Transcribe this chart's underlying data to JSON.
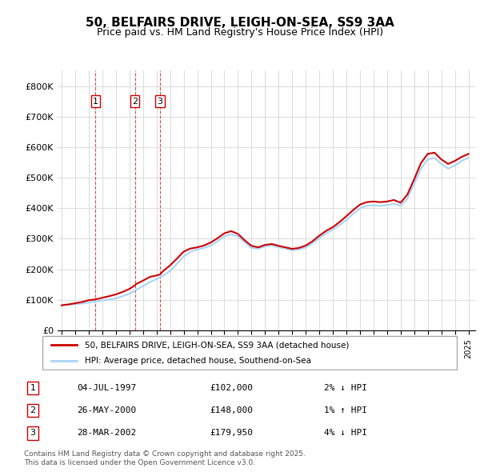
{
  "title": "50, BELFAIRS DRIVE, LEIGH-ON-SEA, SS9 3AA",
  "subtitle": "Price paid vs. HM Land Registry's House Price Index (HPI)",
  "ylabel": "",
  "xlabel": "",
  "ylim": [
    0,
    850000
  ],
  "yticks": [
    0,
    100000,
    200000,
    300000,
    400000,
    500000,
    600000,
    700000,
    800000
  ],
  "ytick_labels": [
    "£0",
    "£100K",
    "£200K",
    "£300K",
    "£400K",
    "£500K",
    "£600K",
    "£700K",
    "£800K"
  ],
  "hpi_color": "#aad4f5",
  "price_color": "#cc0000",
  "vline_color": "#cc0000",
  "grid_color": "#dddddd",
  "background_color": "#ffffff",
  "transactions": [
    {
      "id": 1,
      "date": "04-JUL-1997",
      "price": 102000,
      "pct": "2%",
      "dir": "↓",
      "year": 1997.5
    },
    {
      "id": 2,
      "date": "26-MAY-2000",
      "price": 148000,
      "pct": "1%",
      "dir": "↑",
      "year": 2000.4
    },
    {
      "id": 3,
      "date": "28-MAR-2002",
      "price": 179950,
      "pct": "4%",
      "dir": "↓",
      "year": 2002.25
    }
  ],
  "legend_line1": "50, BELFAIRS DRIVE, LEIGH-ON-SEA, SS9 3AA (detached house)",
  "legend_line2": "HPI: Average price, detached house, Southend-on-Sea",
  "footnote": "Contains HM Land Registry data © Crown copyright and database right 2025.\nThis data is licensed under the Open Government Licence v3.0.",
  "hpi_x": [
    1995,
    1995.5,
    1996,
    1996.5,
    1997,
    1997.5,
    1998,
    1998.5,
    1999,
    1999.5,
    2000,
    2000.5,
    2001,
    2001.5,
    2002,
    2002.5,
    2003,
    2003.5,
    2004,
    2004.5,
    2005,
    2005.5,
    2006,
    2006.5,
    2007,
    2007.5,
    2008,
    2008.5,
    2009,
    2009.5,
    2010,
    2010.5,
    2011,
    2011.5,
    2012,
    2012.5,
    2013,
    2013.5,
    2014,
    2014.5,
    2015,
    2015.5,
    2016,
    2016.5,
    2017,
    2017.5,
    2018,
    2018.5,
    2019,
    2019.5,
    2020,
    2020.5,
    2021,
    2021.5,
    2022,
    2022.5,
    2023,
    2023.5,
    2024,
    2024.5,
    2025
  ],
  "hpi_y": [
    82000,
    84000,
    86000,
    88000,
    91000,
    95000,
    98000,
    101000,
    105000,
    112000,
    120000,
    133000,
    145000,
    158000,
    168000,
    180000,
    195000,
    218000,
    242000,
    258000,
    265000,
    270000,
    278000,
    292000,
    308000,
    315000,
    308000,
    288000,
    270000,
    268000,
    275000,
    278000,
    272000,
    268000,
    262000,
    265000,
    272000,
    285000,
    302000,
    318000,
    330000,
    345000,
    362000,
    382000,
    400000,
    408000,
    410000,
    408000,
    410000,
    415000,
    408000,
    432000,
    480000,
    530000,
    560000,
    565000,
    545000,
    530000,
    540000,
    555000,
    565000
  ],
  "price_x": [
    1995,
    1995.25,
    1995.5,
    1995.75,
    1996,
    1996.25,
    1996.5,
    1996.75,
    1997,
    1997.25,
    1997.5,
    1997.75,
    1998,
    1998.5,
    1999,
    1999.5,
    2000,
    2000.25,
    2000.4,
    2000.5,
    2001,
    2001.5,
    2002,
    2002.25,
    2002.5,
    2003,
    2003.5,
    2004,
    2004.5,
    2005,
    2005.5,
    2006,
    2006.5,
    2007,
    2007.5,
    2008,
    2008.5,
    2009,
    2009.5,
    2010,
    2010.5,
    2011,
    2011.5,
    2012,
    2012.5,
    2013,
    2013.5,
    2014,
    2014.5,
    2015,
    2015.5,
    2016,
    2016.5,
    2017,
    2017.5,
    2018,
    2018.5,
    2019,
    2019.5,
    2020,
    2020.5,
    2021,
    2021.5,
    2022,
    2022.5,
    2023,
    2023.5,
    2024,
    2024.5,
    2025
  ],
  "price_y": [
    82000,
    84000,
    85000,
    87000,
    89000,
    91000,
    93000,
    96000,
    99000,
    100000,
    102000,
    104000,
    107000,
    112000,
    118000,
    126000,
    136000,
    143000,
    148000,
    152000,
    163000,
    175000,
    179950,
    183000,
    195000,
    213000,
    235000,
    258000,
    268000,
    272000,
    278000,
    288000,
    302000,
    318000,
    325000,
    316000,
    295000,
    277000,
    272000,
    280000,
    283000,
    277000,
    272000,
    267000,
    270000,
    278000,
    292000,
    310000,
    326000,
    338000,
    355000,
    374000,
    394000,
    412000,
    420000,
    422000,
    420000,
    422000,
    427000,
    418000,
    445000,
    495000,
    548000,
    578000,
    582000,
    560000,
    545000,
    555000,
    568000,
    578000
  ]
}
